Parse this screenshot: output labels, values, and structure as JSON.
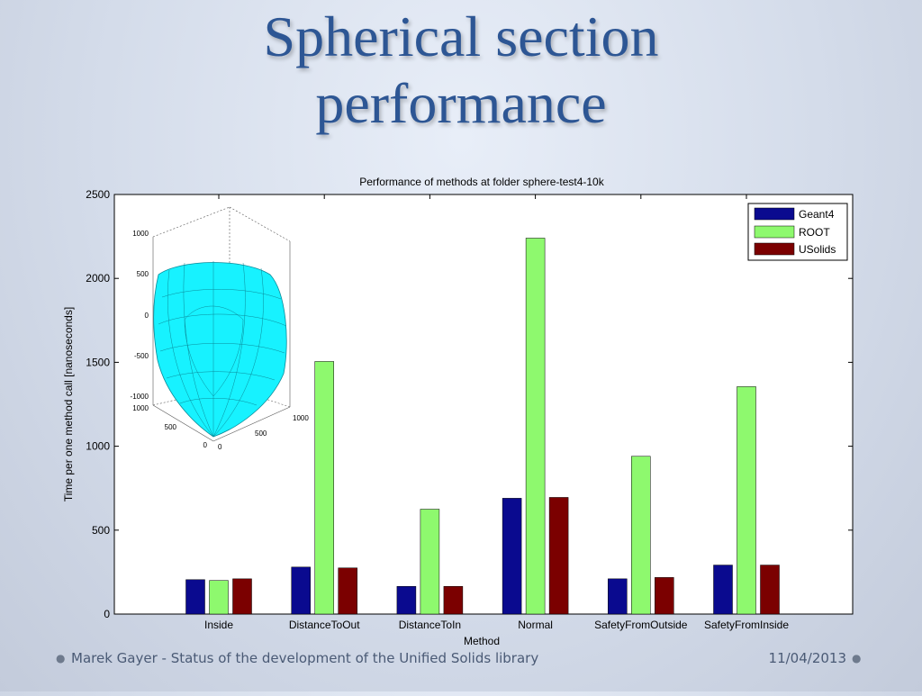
{
  "slide": {
    "title_line1": "Spherical section",
    "title_line2": "performance"
  },
  "footer": {
    "author_text": "Marek Gayer - Status of the development of the Unified Solids library",
    "date": "11/04/2013"
  },
  "colors": {
    "Geant4": "#0a0a8f",
    "ROOT": "#8ef96e",
    "USolids": "#7b0000",
    "inset_surface": "#17f2ff"
  },
  "chart_data": {
    "type": "bar",
    "title": "Performance of methods at folder sphere-test4-10k",
    "xlabel": "Method",
    "ylabel": "Time per one method call [nanoseconds]",
    "ylim": [
      0,
      2500
    ],
    "yticks": [
      0,
      500,
      1000,
      1500,
      2000,
      2500
    ],
    "categories": [
      "Inside",
      "DistanceToOut",
      "DistanceToIn",
      "Normal",
      "SafetyFromOutside",
      "SafetyFromInside"
    ],
    "series": [
      {
        "name": "Geant4",
        "values": [
          205,
          280,
          165,
          690,
          210,
          292
        ]
      },
      {
        "name": "ROOT",
        "values": [
          200,
          1505,
          625,
          2240,
          940,
          1355
        ]
      },
      {
        "name": "USolids",
        "values": [
          210,
          275,
          165,
          695,
          218,
          292
        ]
      }
    ],
    "legend_position": "top-right",
    "grid": false,
    "inset": {
      "description_type": "3d-surface",
      "z_ticks": [
        "1000",
        "500",
        "0",
        "-500",
        "-1000"
      ],
      "x_ticks": [
        "1000",
        "500",
        "0"
      ],
      "y_ticks": [
        "0",
        "500",
        "1000"
      ]
    }
  }
}
